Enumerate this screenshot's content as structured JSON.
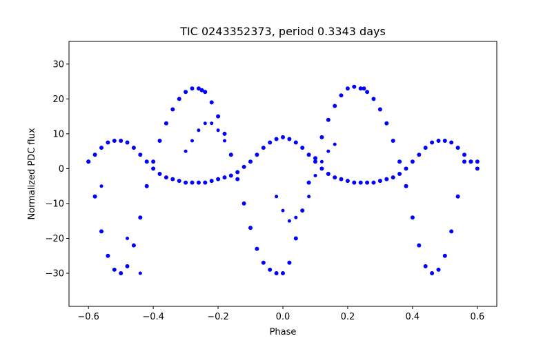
{
  "chart_data": {
    "type": "scatter",
    "title": "TIC 0243352373, period 0.3343 days",
    "xlabel": "Phase",
    "ylabel": "Normalized PDC flux",
    "xlim": [
      -0.66,
      0.66
    ],
    "ylim": [
      -39.5,
      36.5
    ],
    "xticks": [
      -0.6,
      -0.4,
      -0.2,
      0.0,
      0.2,
      0.4,
      0.6
    ],
    "xtick_labels": [
      "−0.6",
      "−0.4",
      "−0.2",
      "0.0",
      "0.2",
      "0.4",
      "0.6"
    ],
    "yticks": [
      -30,
      -20,
      -10,
      0,
      10,
      20,
      30
    ],
    "ytick_labels": [
      "−30",
      "−20",
      "−10",
      "0",
      "10",
      "20",
      "30"
    ],
    "grid": false,
    "legend": "none",
    "marker_color": "#0000ff",
    "series": [
      {
        "values_description": "folded light curve, dominant branch",
        "x": [
          -0.6,
          -0.58,
          -0.56,
          -0.54,
          -0.52,
          -0.5,
          -0.48,
          -0.46,
          -0.44,
          -0.42,
          -0.4,
          -0.38,
          -0.36,
          -0.34,
          -0.32,
          -0.3,
          -0.28,
          -0.26,
          -0.25,
          -0.24,
          -0.22,
          -0.2,
          -0.18,
          -0.16,
          -0.14,
          -0.12,
          -0.1,
          -0.08,
          -0.06,
          -0.04,
          -0.02,
          0.0,
          0.02,
          0.04,
          0.06,
          0.08,
          0.1,
          0.12,
          0.14,
          0.16,
          0.18,
          0.2,
          0.22,
          0.24,
          0.25,
          0.26,
          0.28,
          0.3,
          0.32,
          0.34,
          0.36,
          0.38,
          0.4,
          0.42,
          0.44,
          0.46,
          0.48,
          0.5,
          0.52,
          0.54,
          0.56,
          0.58,
          0.6
        ],
        "y": [
          2,
          -8,
          -18,
          -25,
          -29,
          -30,
          -28,
          -22,
          -14,
          -5,
          2,
          8,
          13,
          17,
          20,
          22,
          23,
          23,
          22.5,
          22,
          19,
          15,
          10,
          4,
          -3,
          -10,
          -17,
          -23,
          -27,
          -29,
          -30,
          -30,
          -27,
          -20,
          -12,
          -4,
          3,
          9,
          14,
          18,
          21,
          23,
          23.5,
          23,
          23,
          22,
          20,
          17,
          13,
          8,
          2,
          -5,
          -14,
          -22,
          -28,
          -30,
          -29,
          -25,
          -18,
          -8,
          2,
          2,
          2
        ]
      },
      {
        "values_description": "folded light curve, secondary branch",
        "x": [
          -0.6,
          -0.58,
          -0.56,
          -0.54,
          -0.52,
          -0.5,
          -0.48,
          -0.46,
          -0.44,
          -0.42,
          -0.4,
          -0.38,
          -0.36,
          -0.34,
          -0.32,
          -0.3,
          -0.28,
          -0.26,
          -0.24,
          -0.22,
          -0.2,
          -0.18,
          -0.16,
          -0.14,
          -0.12,
          -0.1,
          -0.08,
          -0.06,
          -0.04,
          -0.02,
          0.0,
          0.02,
          0.04,
          0.06,
          0.08,
          0.1,
          0.12,
          0.14,
          0.16,
          0.18,
          0.2,
          0.22,
          0.24,
          0.26,
          0.28,
          0.3,
          0.32,
          0.34,
          0.36,
          0.38,
          0.4,
          0.42,
          0.44,
          0.46,
          0.48,
          0.5,
          0.52,
          0.54,
          0.56,
          0.58,
          0.6
        ],
        "y": [
          2,
          4,
          6,
          7.5,
          8,
          8,
          7.5,
          6,
          4,
          2,
          0,
          -1.5,
          -2.5,
          -3,
          -3.5,
          -4,
          -4,
          -4,
          -4,
          -3.5,
          -3,
          -2.5,
          -2,
          -1,
          0.5,
          2,
          4,
          6,
          7.5,
          8.5,
          9,
          8.5,
          7.5,
          6,
          4,
          2,
          0,
          -1.5,
          -2.5,
          -3,
          -3.5,
          -4,
          -4,
          -4,
          -4,
          -3.5,
          -3,
          -2.5,
          -1.5,
          0,
          2,
          4,
          6,
          7.5,
          8,
          8,
          7.5,
          6,
          4,
          2,
          0
        ]
      },
      {
        "values_description": "sparse transitional points",
        "x": [
          -0.3,
          -0.28,
          -0.26,
          -0.24,
          -0.22,
          -0.2,
          -0.18,
          -0.02,
          0.0,
          0.02,
          0.04,
          0.06,
          0.08,
          0.1,
          0.12,
          0.14,
          0.16,
          -0.56,
          -0.48,
          -0.44
        ],
        "y": [
          5,
          8,
          11,
          13,
          13,
          11,
          8,
          -8,
          -12,
          -15,
          -14,
          -12,
          -8,
          -2,
          2,
          5,
          7,
          -5,
          -20,
          -30
        ]
      }
    ]
  }
}
